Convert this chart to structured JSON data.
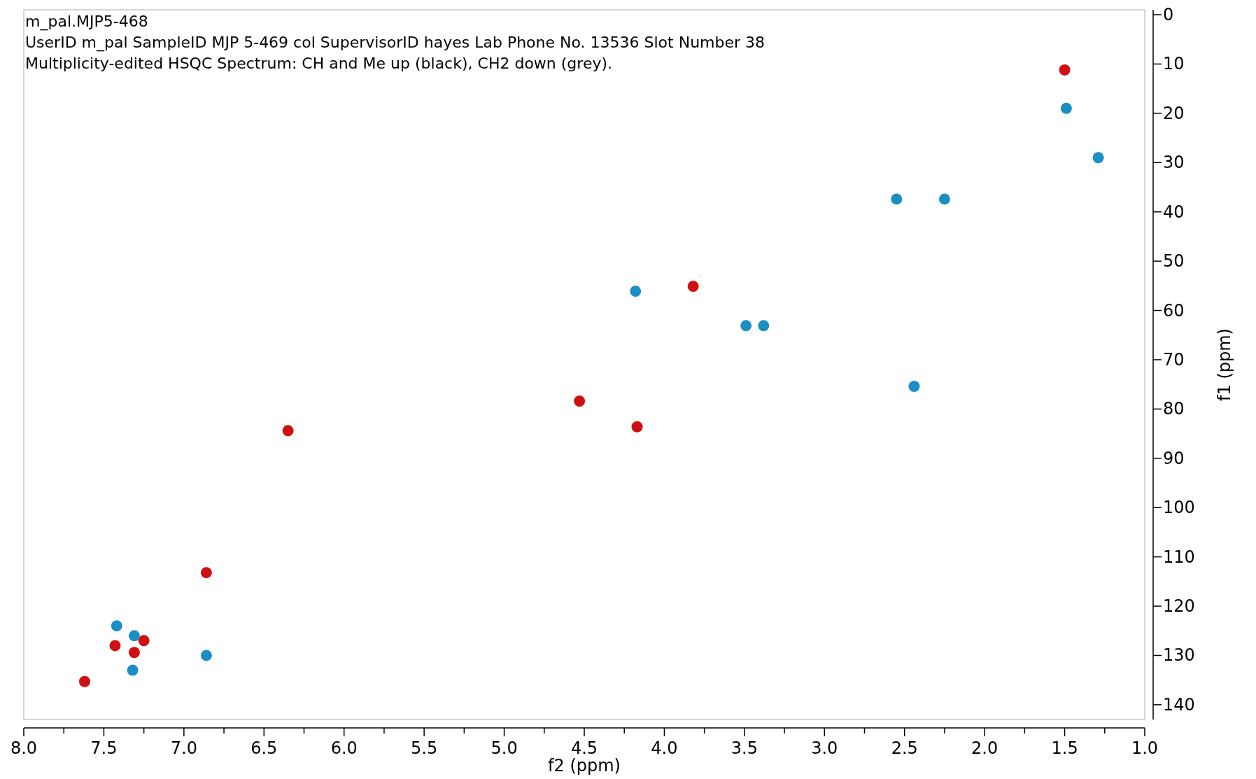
{
  "chart_data": {
    "type": "scatter",
    "title": "m_pal.MJP5-468",
    "subtitle": "UserID m_pal SampleID MJP 5-469 col SupervisorID hayes Lab Phone No. 13536 Slot Number 38",
    "annotations": [
      "Multiplicity-edited HSQC Spectrum: CH and Me up (black), CH2 down (grey)."
    ],
    "xlabel": "f2 (ppm)",
    "ylabel": "f1 (ppm)",
    "xlim": [
      8.0,
      1.0
    ],
    "ylim": [
      143,
      -1
    ],
    "xticks": [
      {
        "value": 8,
        "label": "8.0"
      },
      {
        "value": 7.75,
        "label": null
      },
      {
        "value": 7.5,
        "label": "7.5"
      },
      {
        "value": 7.25,
        "label": null
      },
      {
        "value": 7,
        "label": "7.0"
      },
      {
        "value": 6.75,
        "label": null
      },
      {
        "value": 6.5,
        "label": "6.5"
      },
      {
        "value": 6.25,
        "label": null
      },
      {
        "value": 6,
        "label": "6.0"
      },
      {
        "value": 5.75,
        "label": null
      },
      {
        "value": 5.5,
        "label": "5.5"
      },
      {
        "value": 5.25,
        "label": null
      },
      {
        "value": 5,
        "label": "5.0"
      },
      {
        "value": 4.75,
        "label": null
      },
      {
        "value": 4.5,
        "label": "4.5"
      },
      {
        "value": 4.25,
        "label": null
      },
      {
        "value": 4,
        "label": "4.0"
      },
      {
        "value": 3.75,
        "label": null
      },
      {
        "value": 3.5,
        "label": "3.5"
      },
      {
        "value": 3.25,
        "label": null
      },
      {
        "value": 3,
        "label": "3.0"
      },
      {
        "value": 2.75,
        "label": null
      },
      {
        "value": 2.5,
        "label": "2.5"
      },
      {
        "value": 2.25,
        "label": null
      },
      {
        "value": 2,
        "label": "2.0"
      },
      {
        "value": 1.75,
        "label": null
      },
      {
        "value": 1.5,
        "label": "1.5"
      },
      {
        "value": 1.25,
        "label": null
      },
      {
        "value": 1,
        "label": "1.0"
      }
    ],
    "yticks": [
      0,
      10,
      20,
      30,
      40,
      50,
      60,
      70,
      80,
      90,
      100,
      110,
      120,
      130,
      140
    ],
    "grid": false,
    "marker": "circle",
    "series": [
      {
        "color": "#d01010",
        "x": [
          1.5,
          3.82,
          4.53,
          4.17,
          6.35,
          6.86,
          7.43,
          7.31,
          7.25,
          7.62
        ],
        "values": [
          11.2,
          55.1,
          78.4,
          83.6,
          84.4,
          113.2,
          128,
          129.4,
          127,
          135.3
        ]
      },
      {
        "color": "#1b8fc4",
        "x": [
          1.49,
          1.29,
          2.55,
          2.25,
          4.18,
          3.49,
          3.38,
          2.44,
          7.42,
          7.31,
          7.32,
          6.86
        ],
        "values": [
          19,
          29,
          37.4,
          37.4,
          56.1,
          63.1,
          63.1,
          75.4,
          124,
          126,
          133,
          130
        ]
      }
    ]
  }
}
